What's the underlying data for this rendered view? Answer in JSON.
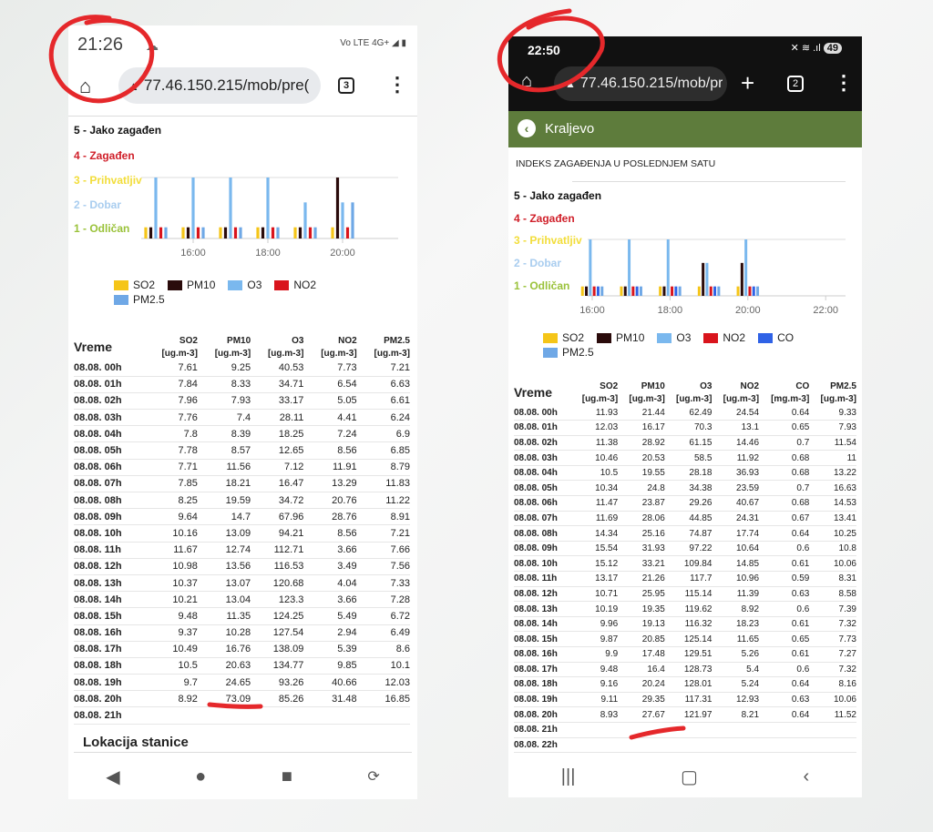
{
  "colors": {
    "SO2": "#f5c518",
    "PM10": "#2a0b0b",
    "O3": "#7ab8ee",
    "NO2": "#d9141c",
    "CO": "#2f62e6",
    "PM2.5": "#6fa8e6",
    "annotation": "#e5282b",
    "header_green": "#5e7c3c"
  },
  "index_levels": [
    {
      "label": "5 - Jako zagađen",
      "color": "#111111"
    },
    {
      "label": "4 - Zagađen",
      "color": "#d0202a"
    },
    {
      "label": "3 - Prihvatljiv",
      "color": "#f2dd3a"
    },
    {
      "label": "2 - Dobar",
      "color": "#a9cdef"
    },
    {
      "label": "1 - Odličan",
      "color": "#9ac23a"
    }
  ],
  "left": {
    "status": {
      "time": "21:26",
      "network": "Vo LTE 4G+",
      "weather_icon": "cloud-icon"
    },
    "browser": {
      "url": "77.46.150.215/mob/pre(",
      "tabs": "3"
    },
    "section_title": "Lokacija stanice",
    "chart_data": {
      "type": "bar",
      "x": [
        "15:00",
        "16:00",
        "17:00",
        "18:00",
        "19:00",
        "20:00"
      ],
      "xticks": [
        "16:00",
        "18:00",
        "20:00"
      ],
      "ylim": [
        0.55,
        3
      ],
      "ylabel_levels": [
        1,
        2,
        3,
        4,
        5
      ],
      "series": [
        {
          "name": "SO2",
          "values": [
            1,
            1,
            1,
            1,
            1,
            1
          ]
        },
        {
          "name": "PM10",
          "values": [
            1,
            1,
            1,
            1,
            1,
            3
          ]
        },
        {
          "name": "O3",
          "values": [
            3,
            3,
            3,
            3,
            2,
            2
          ]
        },
        {
          "name": "NO2",
          "values": [
            1,
            1,
            1,
            1,
            1,
            1
          ]
        },
        {
          "name": "PM2.5",
          "values": [
            1,
            1,
            1,
            1,
            1,
            2
          ]
        }
      ]
    },
    "table": {
      "time_header": "Vreme",
      "columns": [
        [
          "SO2",
          "[ug.m-3]"
        ],
        [
          "PM10",
          "[ug.m-3]"
        ],
        [
          "O3",
          "[ug.m-3]"
        ],
        [
          "NO2",
          "[ug.m-3]"
        ],
        [
          "PM2.5",
          "[ug.m-3]"
        ]
      ],
      "rows": [
        [
          "08.08. 00h",
          "7.61",
          "9.25",
          "40.53",
          "7.73",
          "7.21"
        ],
        [
          "08.08. 01h",
          "7.84",
          "8.33",
          "34.71",
          "6.54",
          "6.63"
        ],
        [
          "08.08. 02h",
          "7.96",
          "7.93",
          "33.17",
          "5.05",
          "6.61"
        ],
        [
          "08.08. 03h",
          "7.76",
          "7.4",
          "28.11",
          "4.41",
          "6.24"
        ],
        [
          "08.08. 04h",
          "7.8",
          "8.39",
          "18.25",
          "7.24",
          "6.9"
        ],
        [
          "08.08. 05h",
          "7.78",
          "8.57",
          "12.65",
          "8.56",
          "6.85"
        ],
        [
          "08.08. 06h",
          "7.71",
          "11.56",
          "7.12",
          "11.91",
          "8.79"
        ],
        [
          "08.08. 07h",
          "7.85",
          "18.21",
          "16.47",
          "13.29",
          "11.83"
        ],
        [
          "08.08. 08h",
          "8.25",
          "19.59",
          "34.72",
          "20.76",
          "11.22"
        ],
        [
          "08.08. 09h",
          "9.64",
          "14.7",
          "67.96",
          "28.76",
          "8.91"
        ],
        [
          "08.08. 10h",
          "10.16",
          "13.09",
          "94.21",
          "8.56",
          "7.21"
        ],
        [
          "08.08. 11h",
          "11.67",
          "12.74",
          "112.71",
          "3.66",
          "7.66"
        ],
        [
          "08.08. 12h",
          "10.98",
          "13.56",
          "116.53",
          "3.49",
          "7.56"
        ],
        [
          "08.08. 13h",
          "10.37",
          "13.07",
          "120.68",
          "4.04",
          "7.33"
        ],
        [
          "08.08. 14h",
          "10.21",
          "13.04",
          "123.3",
          "3.66",
          "7.28"
        ],
        [
          "08.08. 15h",
          "9.48",
          "11.35",
          "124.25",
          "5.49",
          "6.72"
        ],
        [
          "08.08. 16h",
          "9.37",
          "10.28",
          "127.54",
          "2.94",
          "6.49"
        ],
        [
          "08.08. 17h",
          "10.49",
          "16.76",
          "138.09",
          "5.39",
          "8.6"
        ],
        [
          "08.08. 18h",
          "10.5",
          "20.63",
          "134.77",
          "9.85",
          "10.1"
        ],
        [
          "08.08. 19h",
          "9.7",
          "24.65",
          "93.26",
          "40.66",
          "12.03"
        ],
        [
          "08.08. 20h",
          "8.92",
          "73.09",
          "85.26",
          "31.48",
          "16.85"
        ],
        [
          "08.08. 21h",
          "",
          "",
          "",
          "",
          ""
        ]
      ]
    }
  },
  "right": {
    "status": {
      "time": "22:50",
      "battery": "49"
    },
    "browser": {
      "url": "77.46.150.215/mob/pr",
      "tabs": "2"
    },
    "header": {
      "city": "Kraljevo"
    },
    "title": "INDEKS ZAGAĐENJA U POSLEDNJEM SATU",
    "chart_data": {
      "type": "bar",
      "x": [
        "16:00",
        "17:00",
        "18:00",
        "19:00",
        "20:00"
      ],
      "xticks": [
        "16:00",
        "18:00",
        "20:00",
        "22:00"
      ],
      "ylim": [
        0.6,
        3
      ],
      "ylabel_levels": [
        1,
        2,
        3,
        4,
        5
      ],
      "series": [
        {
          "name": "SO2",
          "values": [
            1,
            1,
            1,
            1,
            1
          ]
        },
        {
          "name": "PM10",
          "values": [
            1,
            1,
            1,
            2,
            2
          ]
        },
        {
          "name": "O3",
          "values": [
            3,
            3,
            3,
            2,
            3
          ]
        },
        {
          "name": "NO2",
          "values": [
            1,
            1,
            1,
            1,
            1
          ]
        },
        {
          "name": "CO",
          "values": [
            1,
            1,
            1,
            1,
            1
          ]
        },
        {
          "name": "PM2.5",
          "values": [
            1,
            1,
            1,
            1,
            1
          ]
        }
      ]
    },
    "table": {
      "time_header": "Vreme",
      "columns": [
        [
          "SO2",
          "[ug.m-3]"
        ],
        [
          "PM10",
          "[ug.m-3]"
        ],
        [
          "O3",
          "[ug.m-3]"
        ],
        [
          "NO2",
          "[ug.m-3]"
        ],
        [
          "CO",
          "[mg.m-3]"
        ],
        [
          "PM2.5",
          "[ug.m-3]"
        ]
      ],
      "rows": [
        [
          "08.08. 00h",
          "11.93",
          "21.44",
          "62.49",
          "24.54",
          "0.64",
          "9.33"
        ],
        [
          "08.08. 01h",
          "12.03",
          "16.17",
          "70.3",
          "13.1",
          "0.65",
          "7.93"
        ],
        [
          "08.08. 02h",
          "11.38",
          "28.92",
          "61.15",
          "14.46",
          "0.7",
          "11.54"
        ],
        [
          "08.08. 03h",
          "10.46",
          "20.53",
          "58.5",
          "11.92",
          "0.68",
          "11"
        ],
        [
          "08.08. 04h",
          "10.5",
          "19.55",
          "28.18",
          "36.93",
          "0.68",
          "13.22"
        ],
        [
          "08.08. 05h",
          "10.34",
          "24.8",
          "34.38",
          "23.59",
          "0.7",
          "16.63"
        ],
        [
          "08.08. 06h",
          "11.47",
          "23.87",
          "29.26",
          "40.67",
          "0.68",
          "14.53"
        ],
        [
          "08.08. 07h",
          "11.69",
          "28.06",
          "44.85",
          "24.31",
          "0.67",
          "13.41"
        ],
        [
          "08.08. 08h",
          "14.34",
          "25.16",
          "74.87",
          "17.74",
          "0.64",
          "10.25"
        ],
        [
          "08.08. 09h",
          "15.54",
          "31.93",
          "97.22",
          "10.64",
          "0.6",
          "10.8"
        ],
        [
          "08.08. 10h",
          "15.12",
          "33.21",
          "109.84",
          "14.85",
          "0.61",
          "10.06"
        ],
        [
          "08.08. 11h",
          "13.17",
          "21.26",
          "117.7",
          "10.96",
          "0.59",
          "8.31"
        ],
        [
          "08.08. 12h",
          "10.71",
          "25.95",
          "115.14",
          "11.39",
          "0.63",
          "8.58"
        ],
        [
          "08.08. 13h",
          "10.19",
          "19.35",
          "119.62",
          "8.92",
          "0.6",
          "7.39"
        ],
        [
          "08.08. 14h",
          "9.96",
          "19.13",
          "116.32",
          "18.23",
          "0.61",
          "7.32"
        ],
        [
          "08.08. 15h",
          "9.87",
          "20.85",
          "125.14",
          "11.65",
          "0.65",
          "7.73"
        ],
        [
          "08.08. 16h",
          "9.9",
          "17.48",
          "129.51",
          "5.26",
          "0.61",
          "7.27"
        ],
        [
          "08.08. 17h",
          "9.48",
          "16.4",
          "128.73",
          "5.4",
          "0.6",
          "7.32"
        ],
        [
          "08.08. 18h",
          "9.16",
          "20.24",
          "128.01",
          "5.24",
          "0.64",
          "8.16"
        ],
        [
          "08.08. 19h",
          "9.11",
          "29.35",
          "117.31",
          "12.93",
          "0.63",
          "10.06"
        ],
        [
          "08.08. 20h",
          "8.93",
          "27.67",
          "121.97",
          "8.21",
          "0.64",
          "11.52"
        ],
        [
          "08.08. 21h",
          "",
          "",
          "",
          "",
          "",
          ""
        ],
        [
          "08.08. 22h",
          "",
          "",
          "",
          "",
          "",
          ""
        ]
      ]
    }
  }
}
